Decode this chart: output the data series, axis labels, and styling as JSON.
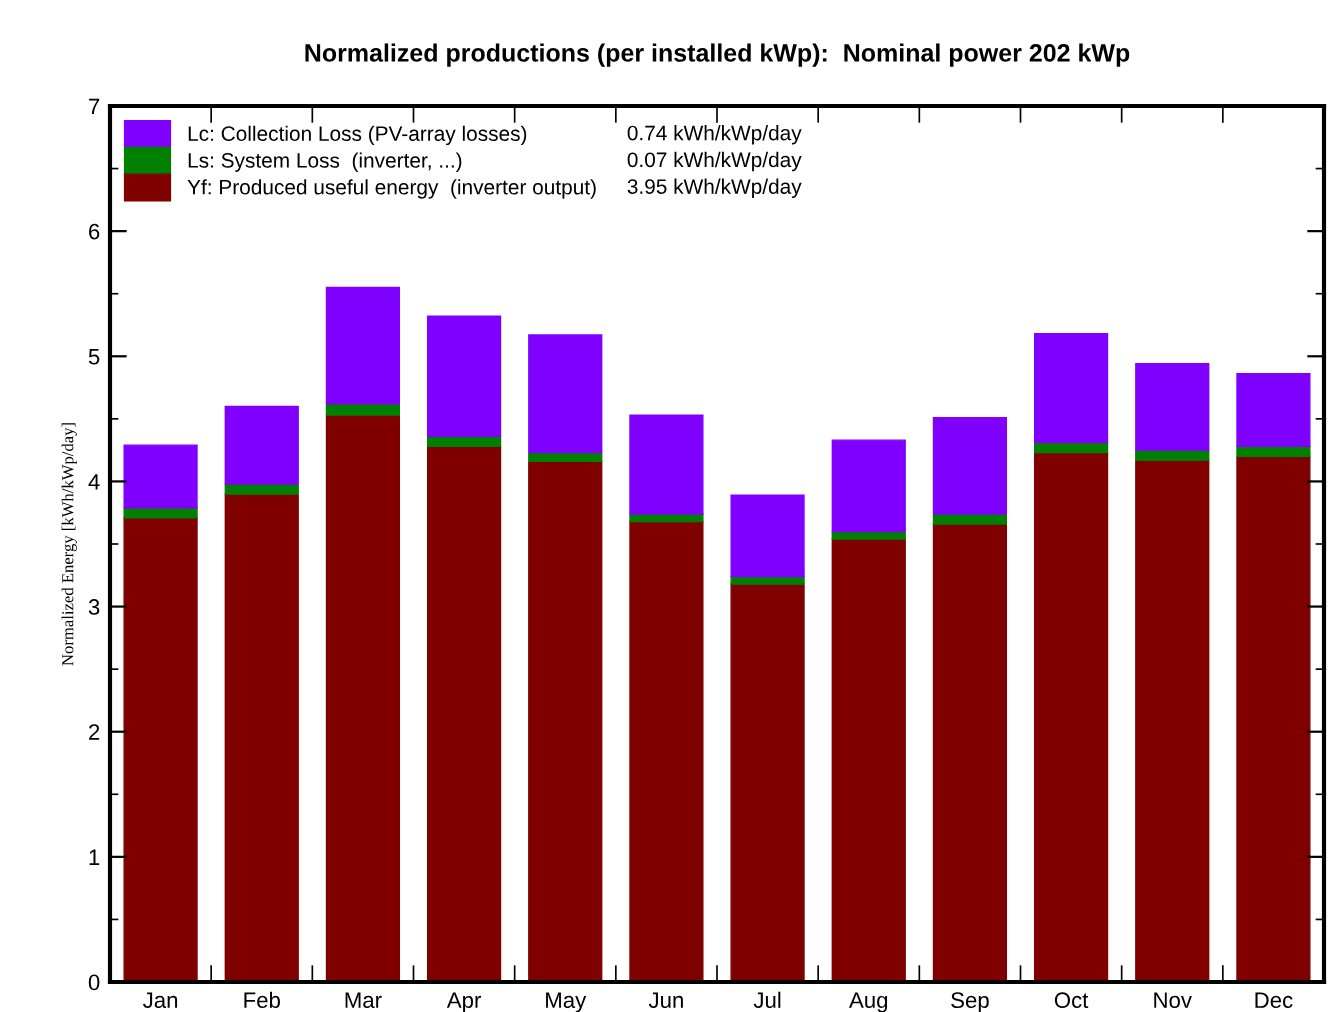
{
  "chart_data": {
    "type": "bar",
    "stacked": true,
    "title": "Normalized productions (per installed kWp):  Nominal power 202 kWp",
    "ylabel": "Normalized Energy [kWh/kWp/day]",
    "categories": [
      "Jan",
      "Feb",
      "Mar",
      "Apr",
      "May",
      "Jun",
      "Jul",
      "Aug",
      "Sep",
      "Oct",
      "Nov",
      "Dec"
    ],
    "series": [
      {
        "name": "Yf: Produced useful energy  (inverter output)",
        "color": "#800000",
        "values": [
          3.71,
          3.9,
          4.53,
          4.28,
          4.16,
          3.68,
          3.18,
          3.54,
          3.66,
          4.23,
          4.17,
          4.2
        ]
      },
      {
        "name": "Ls: System Loss  (inverter, ...)",
        "color": "#008000",
        "values": [
          0.08,
          0.08,
          0.09,
          0.08,
          0.07,
          0.06,
          0.06,
          0.06,
          0.08,
          0.08,
          0.08,
          0.08
        ]
      },
      {
        "name": "Lc: Collection Loss (PV-array losses)",
        "color": "#8000ff",
        "values": [
          0.5,
          0.62,
          0.93,
          0.96,
          0.94,
          0.79,
          0.65,
          0.73,
          0.77,
          0.87,
          0.69,
          0.58
        ]
      }
    ],
    "annotations": [
      "3.95 kWh/kWp/day",
      "0.07 kWh/kWp/day",
      "0.74 kWh/kWp/day"
    ],
    "ylim": [
      0,
      7
    ],
    "yticks": [
      0,
      {
        "value": 0.5,
        "label": null
      },
      1,
      {
        "value": 1.5,
        "label": null
      },
      2,
      {
        "value": 2.5,
        "label": null
      },
      3,
      {
        "value": 3.5,
        "label": null
      },
      4,
      {
        "value": 4.5,
        "label": null
      },
      5,
      {
        "value": 5.5,
        "label": null
      },
      6,
      {
        "value": 6.5,
        "label": null
      },
      7
    ],
    "legend": "top left"
  }
}
